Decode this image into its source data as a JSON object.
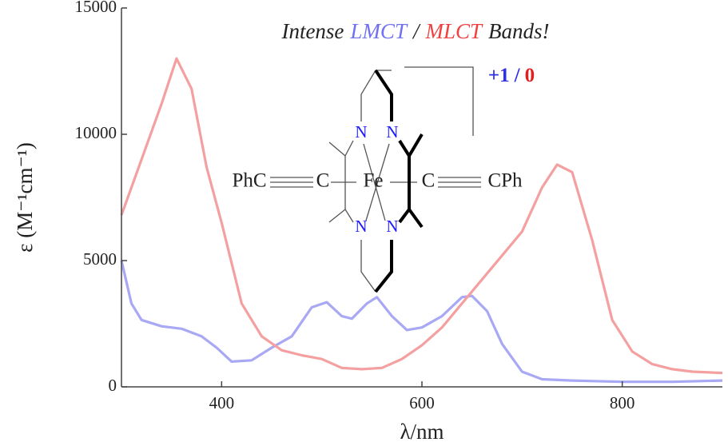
{
  "chart_data": {
    "type": "line",
    "title": [
      "Intense",
      "LMCT",
      "/",
      "MLCT",
      "Bands!"
    ],
    "x_label": "λ/nm",
    "y_label": "ε (M⁻¹cm⁻¹)",
    "xlim": [
      300,
      900
    ],
    "xticks": [
      400,
      600,
      800
    ],
    "ylim": [
      0,
      15000
    ],
    "yticks": [
      0,
      5000,
      10000,
      15000
    ],
    "grid": false,
    "series": [
      {
        "name": "+1",
        "color": "#a8a8f4",
        "x": [
          300,
          310,
          320,
          340,
          360,
          380,
          395,
          410,
          430,
          450,
          470,
          490,
          505,
          520,
          530,
          545,
          555,
          570,
          585,
          600,
          620,
          640,
          650,
          665,
          680,
          700,
          720,
          750,
          800,
          850,
          900
        ],
        "values": [
          5000,
          3300,
          2650,
          2400,
          2300,
          2000,
          1550,
          1000,
          1050,
          1550,
          2000,
          3150,
          3350,
          2800,
          2700,
          3300,
          3550,
          2800,
          2250,
          2350,
          2800,
          3550,
          3600,
          3000,
          1700,
          600,
          300,
          250,
          200,
          200,
          250
        ]
      },
      {
        "name": "0",
        "color": "#f4a0a0",
        "x": [
          300,
          320,
          340,
          355,
          370,
          385,
          400,
          420,
          440,
          460,
          480,
          500,
          520,
          540,
          560,
          580,
          600,
          620,
          640,
          660,
          680,
          700,
          720,
          735,
          750,
          770,
          790,
          810,
          830,
          850,
          870,
          900
        ],
        "values": [
          6800,
          9000,
          11200,
          13000,
          11800,
          8700,
          6500,
          3300,
          2000,
          1450,
          1250,
          1100,
          750,
          700,
          750,
          1100,
          1650,
          2350,
          3300,
          4250,
          5200,
          6150,
          7900,
          8800,
          8500,
          5800,
          2650,
          1400,
          900,
          700,
          600,
          550
        ]
      }
    ],
    "legend_separator": "/",
    "structure_labels": {
      "left": "PhC",
      "left_c": "C",
      "metal": "Fe",
      "right_c": "C",
      "right": "CPh",
      "n": [
        "N",
        "N",
        "N",
        "N"
      ]
    }
  }
}
